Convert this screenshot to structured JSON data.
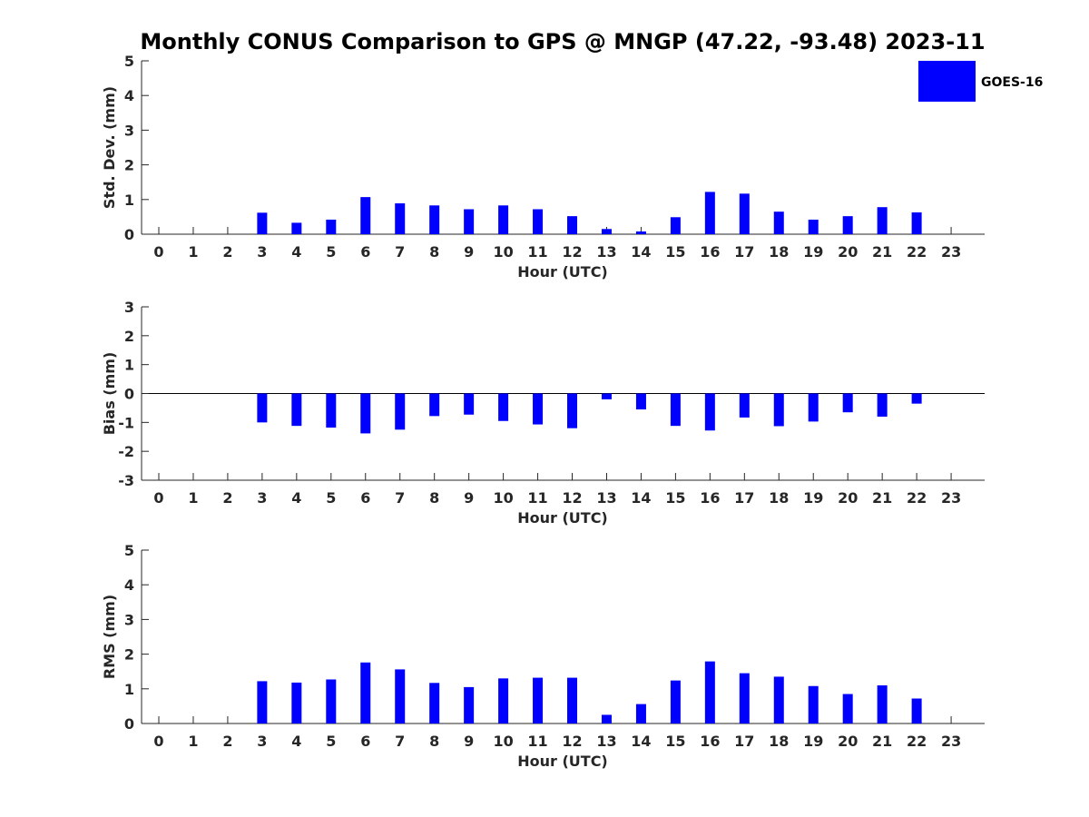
{
  "colors": {
    "series": "#0000ff",
    "axis": "#262626",
    "background": "#ffffff"
  },
  "chart_data": {
    "type": "bar",
    "title": "Monthly CONUS Comparison to GPS @ MNGP (47.22, -93.48) 2023-11",
    "legend": {
      "position": "top-right",
      "entries": [
        "GOES-16"
      ]
    },
    "categories": [
      "0",
      "1",
      "2",
      "3",
      "4",
      "5",
      "6",
      "7",
      "8",
      "9",
      "10",
      "11",
      "12",
      "13",
      "14",
      "15",
      "16",
      "17",
      "18",
      "19",
      "20",
      "21",
      "22",
      "23"
    ],
    "panels": [
      {
        "id": "std",
        "ylabel": "Std. Dev. (mm)",
        "xlabel": "Hour (UTC)",
        "ylim": [
          0,
          5
        ],
        "yticks": [
          "0",
          "1",
          "2",
          "3",
          "4",
          "5"
        ],
        "series": [
          {
            "name": "GOES-16",
            "values": [
              null,
              null,
              null,
              0.62,
              0.33,
              0.42,
              1.07,
              0.89,
              0.83,
              0.72,
              0.83,
              0.72,
              0.52,
              0.15,
              0.08,
              0.49,
              1.22,
              1.17,
              0.65,
              0.42,
              0.52,
              0.78,
              0.63,
              null
            ]
          }
        ]
      },
      {
        "id": "bias",
        "ylabel": "Bias (mm)",
        "xlabel": "Hour (UTC)",
        "ylim": [
          -3,
          3
        ],
        "yticks": [
          "-3",
          "-2",
          "-1",
          "0",
          "1",
          "2",
          "3"
        ],
        "series": [
          {
            "name": "GOES-16",
            "values": [
              null,
              null,
              null,
              -1.0,
              -1.12,
              -1.18,
              -1.38,
              -1.25,
              -0.78,
              -0.73,
              -0.95,
              -1.07,
              -1.2,
              -0.2,
              -0.55,
              -1.12,
              -1.28,
              -0.83,
              -1.13,
              -0.97,
              -0.65,
              -0.8,
              -0.35,
              null
            ]
          }
        ]
      },
      {
        "id": "rms",
        "ylabel": "RMS (mm)",
        "xlabel": "Hour (UTC)",
        "ylim": [
          0,
          5
        ],
        "yticks": [
          "0",
          "1",
          "2",
          "3",
          "4",
          "5"
        ],
        "series": [
          {
            "name": "GOES-16",
            "values": [
              null,
              null,
              null,
              1.22,
              1.18,
              1.27,
              1.76,
              1.56,
              1.17,
              1.05,
              1.3,
              1.32,
              1.32,
              0.25,
              0.56,
              1.24,
              1.79,
              1.45,
              1.35,
              1.08,
              0.85,
              1.1,
              0.72,
              null
            ]
          }
        ]
      }
    ]
  }
}
